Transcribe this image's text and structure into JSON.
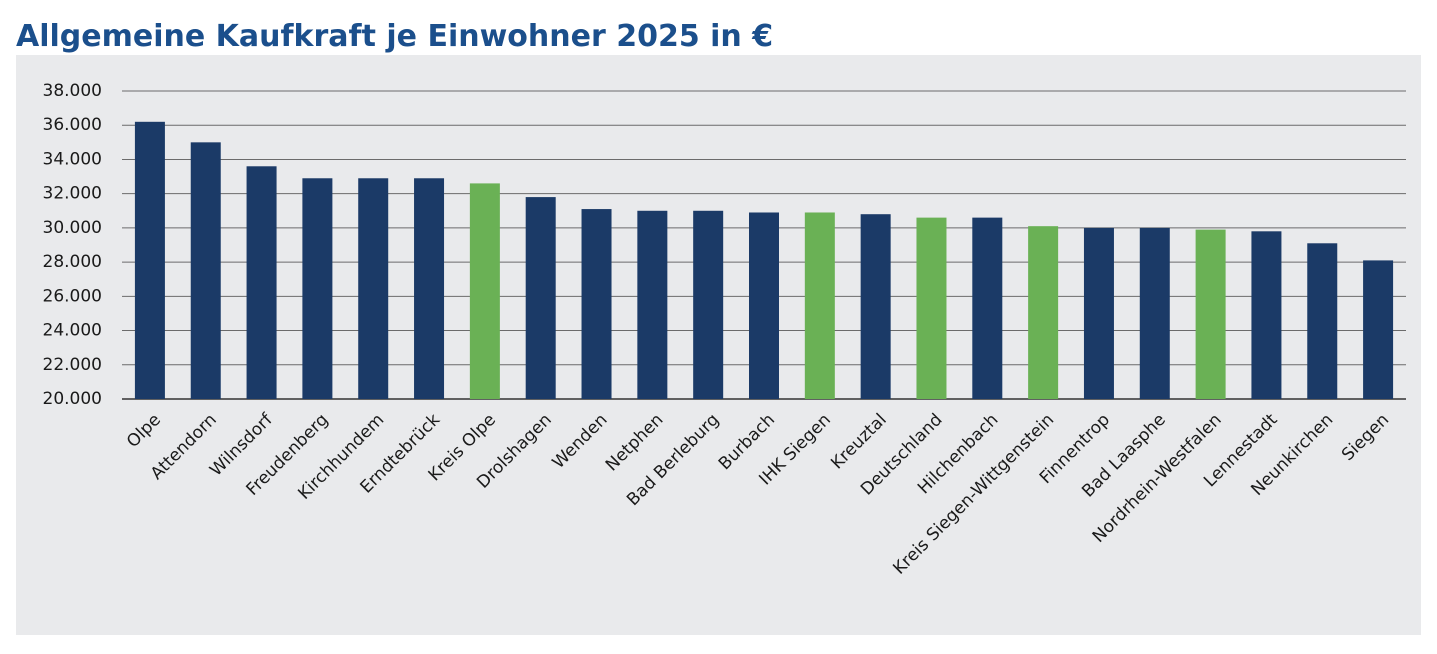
{
  "chart_data": {
    "type": "bar",
    "title": "Allgemeine Kaufkraft je Einwohner 2025 in €",
    "categories": [
      "Olpe",
      "Attendorn",
      "Wilnsdorf",
      "Freudenberg",
      "Kirchhundem",
      "Erndtebrück",
      "Kreis Olpe",
      "Drolshagen",
      "Wenden",
      "Netphen",
      "Bad Berleburg",
      "Burbach",
      "IHK Siegen",
      "Kreuztal",
      "Deutschland",
      "Hilchenbach",
      "Kreis Siegen-Wittgenstein",
      "Finnentrop",
      "Bad Laasphe",
      "Nordrhein-Westfalen",
      "Lennestadt",
      "Neunkirchen",
      "Siegen"
    ],
    "values": [
      36200,
      35000,
      33600,
      32900,
      32900,
      32900,
      32600,
      31800,
      31100,
      31000,
      31000,
      30900,
      30900,
      30800,
      30600,
      30600,
      30100,
      30000,
      30000,
      29900,
      29800,
      29100,
      28100
    ],
    "colors": [
      "#1b3a67",
      "#1b3a67",
      "#1b3a67",
      "#1b3a67",
      "#1b3a67",
      "#1b3a67",
      "#6ab155",
      "#1b3a67",
      "#1b3a67",
      "#1b3a67",
      "#1b3a67",
      "#1b3a67",
      "#6ab155",
      "#1b3a67",
      "#6ab155",
      "#1b3a67",
      "#6ab155",
      "#1b3a67",
      "#1b3a67",
      "#6ab155",
      "#1b3a67",
      "#1b3a67",
      "#1b3a67"
    ],
    "ylim": [
      20000,
      38000
    ],
    "yticks": [
      {
        "value": 20000,
        "label": "20.000"
      },
      {
        "value": 22000,
        "label": "22.000"
      },
      {
        "value": 24000,
        "label": "24.000"
      },
      {
        "value": 26000,
        "label": "26.000"
      },
      {
        "value": 28000,
        "label": "28.000"
      },
      {
        "value": 30000,
        "label": "30.000"
      },
      {
        "value": 32000,
        "label": "32.000"
      },
      {
        "value": 34000,
        "label": "34.000"
      },
      {
        "value": 36000,
        "label": "36.000"
      },
      {
        "value": 38000,
        "label": "38.000"
      }
    ],
    "grid": true
  }
}
